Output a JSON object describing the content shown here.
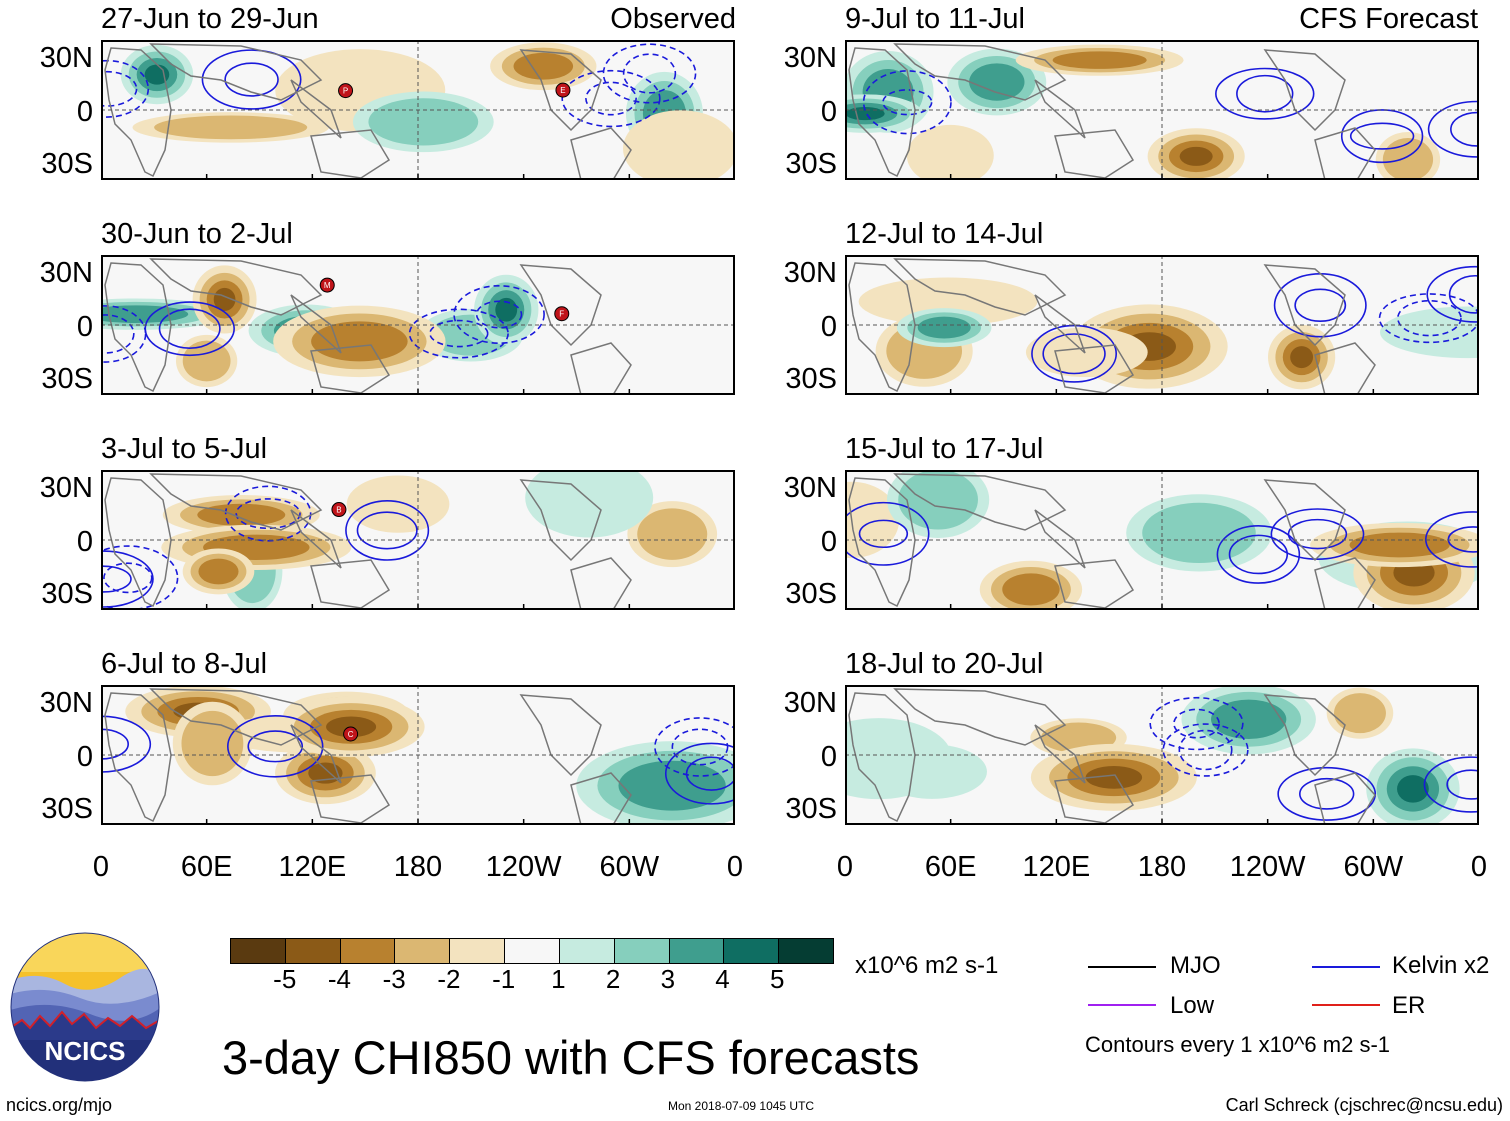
{
  "header": {
    "left_column_tag": "Observed",
    "right_column_tag": "CFS Forecast"
  },
  "panels": [
    {
      "period": "27-Jun to 29-Jun",
      "column": "Observed",
      "tc_markers": [
        "P",
        "E"
      ]
    },
    {
      "period": "30-Jun to 2-Jul",
      "column": "Observed",
      "tc_markers": [
        "M",
        "F"
      ]
    },
    {
      "period": "3-Jul to 5-Jul",
      "column": "Observed",
      "tc_markers": [
        "B"
      ]
    },
    {
      "period": "6-Jul to 8-Jul",
      "column": "Observed",
      "tc_markers": [
        "C"
      ]
    },
    {
      "period": "9-Jul to 11-Jul",
      "column": "CFS Forecast",
      "tc_markers": []
    },
    {
      "period": "12-Jul to 14-Jul",
      "column": "CFS Forecast",
      "tc_markers": []
    },
    {
      "period": "15-Jul to 17-Jul",
      "column": "CFS Forecast",
      "tc_markers": []
    },
    {
      "period": "18-Jul to 20-Jul",
      "column": "CFS Forecast",
      "tc_markers": []
    }
  ],
  "axes": {
    "lat_ticks": [
      "30N",
      "0",
      "30S"
    ],
    "lon_ticks": [
      "0",
      "60E",
      "120E",
      "180",
      "120W",
      "60W",
      "0"
    ]
  },
  "colorbar": {
    "ticks": [
      "-5",
      "-4",
      "-3",
      "-2",
      "-1",
      "1",
      "2",
      "3",
      "4",
      "5"
    ],
    "colors": [
      "#5a3a10",
      "#8b5a17",
      "#b8812f",
      "#dbb772",
      "#f3e3bf",
      "#f7f7f7",
      "#c6ebe0",
      "#86cfbd",
      "#3f9e8e",
      "#0f6e62",
      "#053d33"
    ],
    "units": "x10^6 m2 s-1"
  },
  "legend": [
    {
      "label": "MJO",
      "color": "#000000"
    },
    {
      "label": "Kelvin x2",
      "color": "#1a1adb"
    },
    {
      "label": "Low",
      "color": "#a020f0"
    },
    {
      "label": "ER",
      "color": "#e0201a"
    }
  ],
  "contour_note": "Contours every 1 x10^6 m2 s-1",
  "title": "3-day CHI850 with CFS forecasts",
  "footer": {
    "logo_text": "NCICS",
    "site": "ncics.org/mjo",
    "timestamp": "Mon 2018-07-09 1045 UTC",
    "author": "Carl Schreck (cjschrec@ncsu.edu)"
  }
}
